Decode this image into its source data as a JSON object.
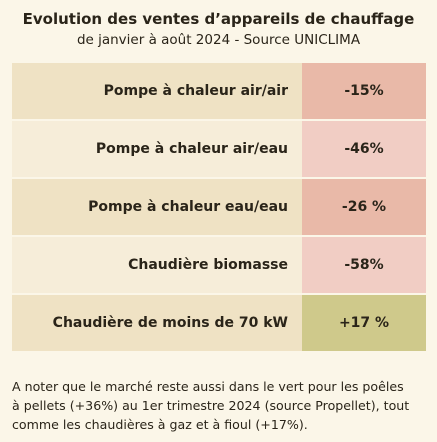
{
  "header": {
    "title": "Evolution des ventes d’appareils de chauffage",
    "subtitle": "de janvier à août 2024 - Source UNICLIMA"
  },
  "rows": [
    {
      "label": "Pompe à chaleur air/air",
      "value": "-15%",
      "label_bg": "#efe2c4",
      "value_bg": "#e9b9a8"
    },
    {
      "label": "Pompe à chaleur air/eau",
      "value": "-46%",
      "label_bg": "#f6edd9",
      "value_bg": "#f1cdc4"
    },
    {
      "label": "Pompe à chaleur eau/eau",
      "value": "-26 %",
      "label_bg": "#efe2c4",
      "value_bg": "#e9b9a8"
    },
    {
      "label": "Chaudière biomasse",
      "value": "-58%",
      "label_bg": "#f6edd9",
      "value_bg": "#f1cdc4"
    },
    {
      "label": "Chaudière de moins de 70 kW",
      "value": "+17 %",
      "label_bg": "#efe2c4",
      "value_bg": "#cfc98b"
    }
  ],
  "note": {
    "lines": [
      "A noter que le marché reste aussi dans le vert pour les poêles",
      "à pellets (+36%) au 1er trimestre 2024 (source Propellet), tout",
      "comme les chaudières à gaz et à fioul (+17%)."
    ]
  }
}
